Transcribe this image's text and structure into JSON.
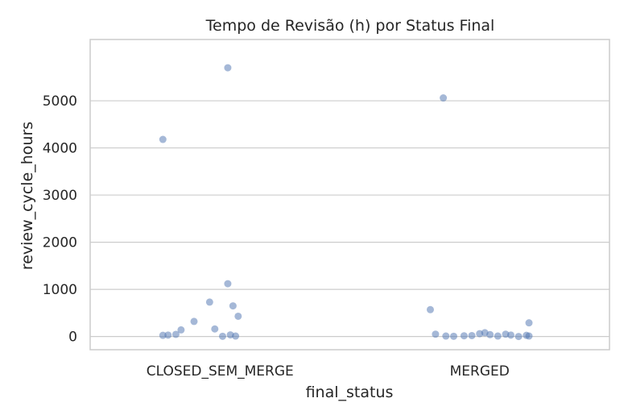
{
  "chart_data": {
    "type": "scatter",
    "title": "Tempo de Revisão (h) por Status Final",
    "xlabel": "final_status",
    "ylabel": "review_cycle_hours",
    "categories": [
      "CLOSED_SEM_MERGE",
      "MERGED"
    ],
    "ylim": [
      -280,
      6300
    ],
    "yticks": [
      0,
      1000,
      2000,
      3000,
      4000,
      5000
    ],
    "grid": true,
    "colors": {
      "points": "#4c72b0"
    },
    "series": [
      {
        "category": "CLOSED_SEM_MERGE",
        "points": [
          {
            "jitter": 0.03,
            "y": 5700
          },
          {
            "jitter": -0.22,
            "y": 4180
          },
          {
            "jitter": 0.03,
            "y": 1120
          },
          {
            "jitter": -0.04,
            "y": 730
          },
          {
            "jitter": 0.05,
            "y": 650
          },
          {
            "jitter": 0.07,
            "y": 430
          },
          {
            "jitter": -0.1,
            "y": 320
          },
          {
            "jitter": -0.15,
            "y": 140
          },
          {
            "jitter": -0.02,
            "y": 160
          },
          {
            "jitter": -0.17,
            "y": 45
          },
          {
            "jitter": -0.2,
            "y": 30
          },
          {
            "jitter": -0.22,
            "y": 25
          },
          {
            "jitter": 0.04,
            "y": 35
          },
          {
            "jitter": 0.06,
            "y": 10
          },
          {
            "jitter": 0.01,
            "y": 5
          }
        ]
      },
      {
        "category": "MERGED",
        "points": [
          {
            "jitter": -0.14,
            "y": 5060
          },
          {
            "jitter": -0.19,
            "y": 570
          },
          {
            "jitter": 0.19,
            "y": 290
          },
          {
            "jitter": -0.17,
            "y": 50
          },
          {
            "jitter": -0.13,
            "y": 10
          },
          {
            "jitter": -0.1,
            "y": 5
          },
          {
            "jitter": -0.06,
            "y": 15
          },
          {
            "jitter": -0.03,
            "y": 20
          },
          {
            "jitter": 0.0,
            "y": 60
          },
          {
            "jitter": 0.02,
            "y": 80
          },
          {
            "jitter": 0.04,
            "y": 40
          },
          {
            "jitter": 0.07,
            "y": 10
          },
          {
            "jitter": 0.1,
            "y": 50
          },
          {
            "jitter": 0.12,
            "y": 30
          },
          {
            "jitter": 0.15,
            "y": 0
          },
          {
            "jitter": 0.18,
            "y": 25
          },
          {
            "jitter": 0.19,
            "y": 10
          }
        ]
      }
    ]
  }
}
